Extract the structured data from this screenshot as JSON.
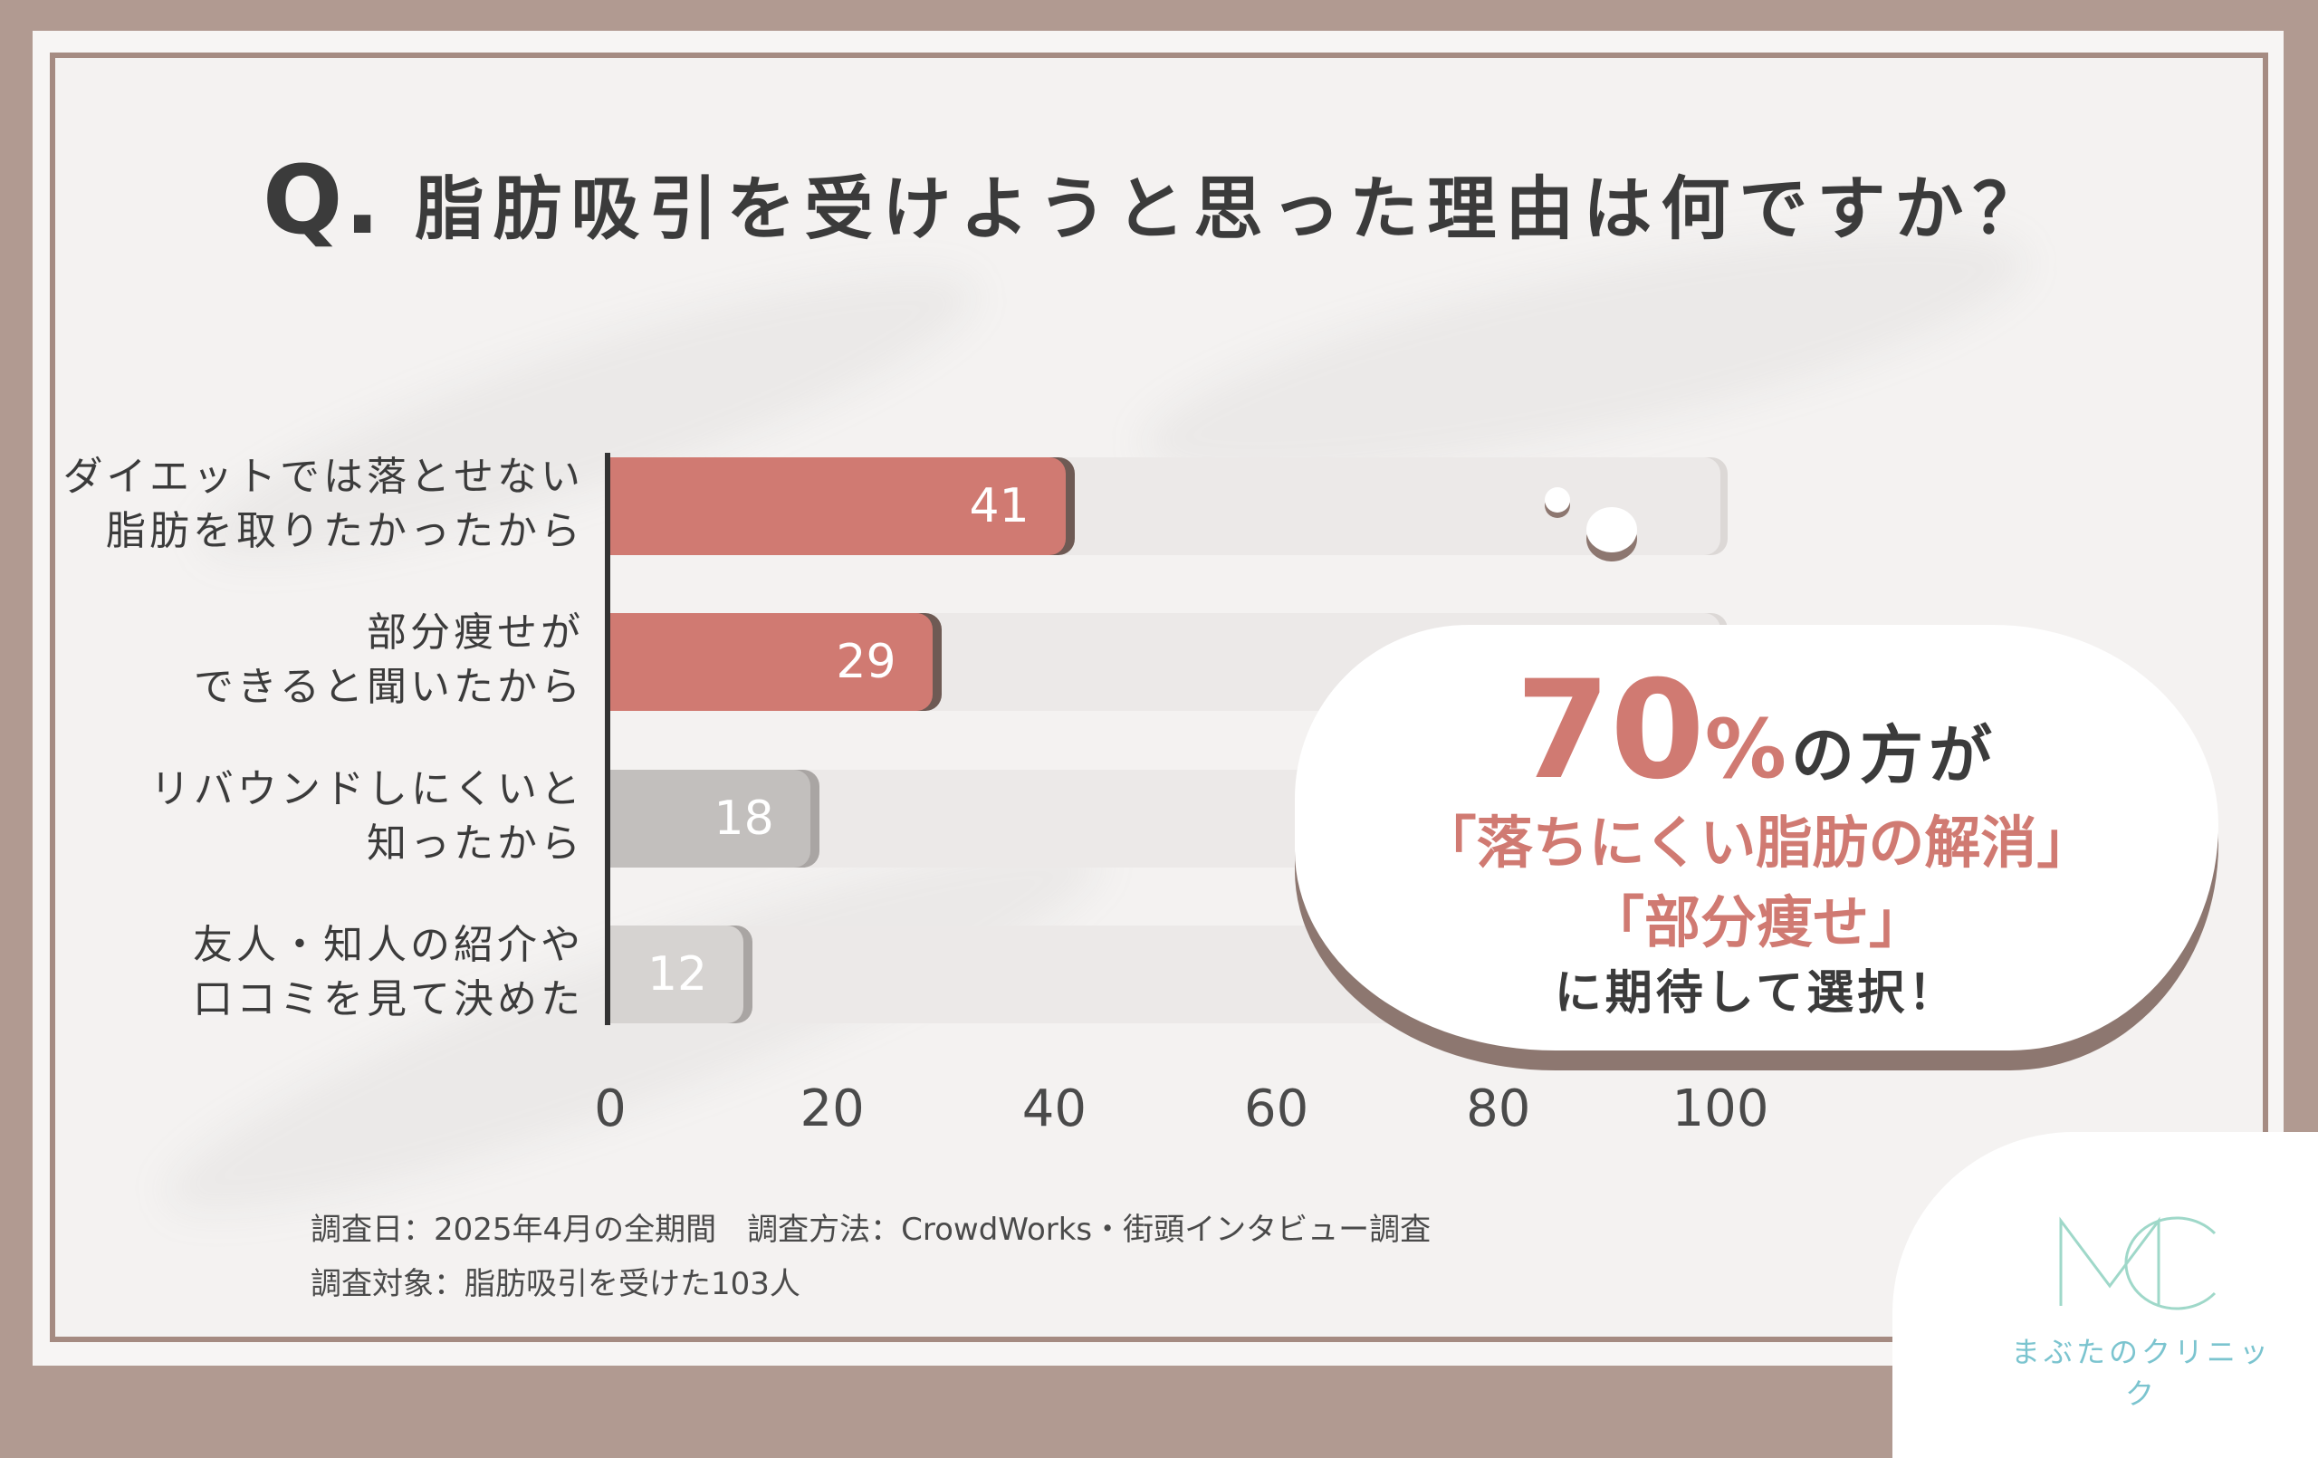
{
  "title": {
    "prefix": "Q.",
    "text": "脂肪吸引を受けようと思った理由は何ですか？"
  },
  "chart_data": {
    "type": "bar",
    "orientation": "horizontal",
    "categories": [
      [
        "ダイエットでは落とせない",
        "脂肪を取りたかったから"
      ],
      [
        "部分痩せが",
        "できると聞いたから"
      ],
      [
        "リバウンドしにくいと",
        "知ったから"
      ],
      [
        "友人・知人の紹介や",
        "口コミを見て決めた"
      ]
    ],
    "values": [
      41,
      29,
      18,
      12
    ],
    "value_labels": [
      "41",
      "29",
      "18",
      "12"
    ],
    "xlim": [
      0,
      100
    ],
    "xticks": [
      "0",
      "20",
      "40",
      "60",
      "80",
      "100"
    ],
    "bar_colors": [
      "#d07a72",
      "#d07a72",
      "#c2bfbd",
      "#d6d3d1"
    ],
    "grid": false
  },
  "callout": {
    "percent": "70",
    "percent_sign": "%",
    "suffix": "の方が",
    "line2": "「落ちにくい脂肪の解消」",
    "line3": "「部分痩せ」",
    "line4": "に期待して選択！"
  },
  "notes": {
    "line1": "調査日：2025年4月の全期間　調査方法：CrowdWorks・街頭インタビュー調査",
    "line2": "調査対象：脂肪吸引を受けた103人"
  },
  "logo": {
    "text": "まぶたのクリニック",
    "mark": "MC",
    "color": "#7bc4cf"
  }
}
